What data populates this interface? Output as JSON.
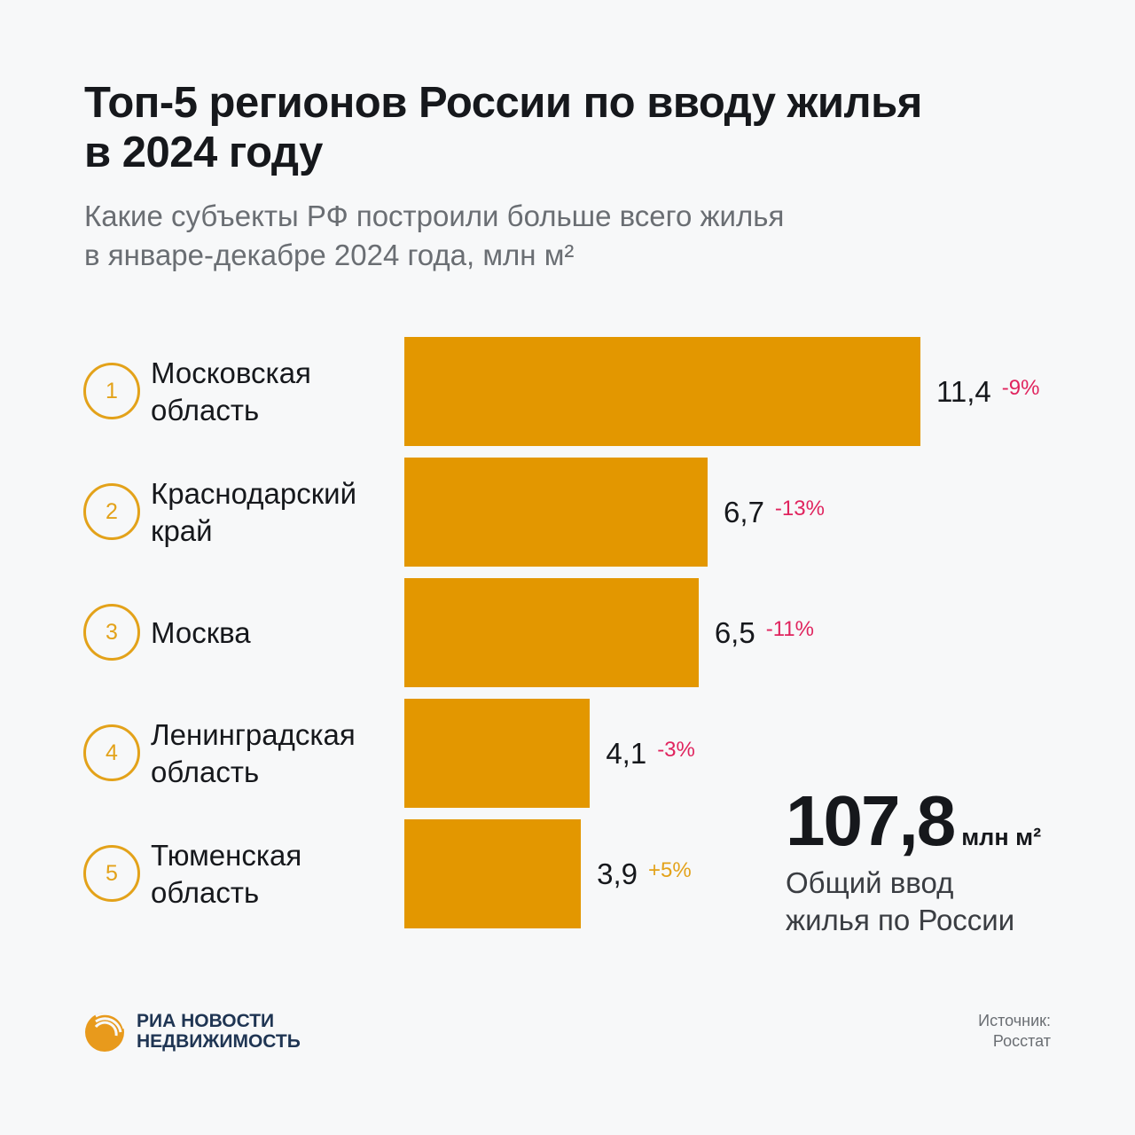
{
  "chart_data": {
    "type": "bar",
    "orientation": "horizontal",
    "title": "Топ-5 регионов России по вводу жилья в 2024 году",
    "subtitle": "Какие субъекты РФ построили больше всего жилья в январе-декабре 2024 года, млн м²",
    "categories": [
      "Московская область",
      "Краснодарский край",
      "Москва",
      "Ленинградская область",
      "Тюменская область"
    ],
    "ranks": [
      "1",
      "2",
      "3",
      "4",
      "5"
    ],
    "values": [
      11.4,
      6.7,
      6.5,
      4.1,
      3.9
    ],
    "value_labels": [
      "11,4",
      "6,7",
      "6,5",
      "4,1",
      "3,9"
    ],
    "changes": [
      "-9%",
      "-13%",
      "-11%",
      "-3%",
      "+5%"
    ],
    "bar_color": "#e39700",
    "negative_color": "#e0245e",
    "positive_color": "#e3a21a",
    "xlim": [
      0,
      11.4
    ],
    "grid": false
  },
  "total": {
    "value": "107,8",
    "unit": "млн м²",
    "label_line1": "Общий ввод",
    "label_line2": "жилья по России"
  },
  "title_line1": "Топ-5 регионов России по вводу жилья",
  "title_line2": "в 2024 году",
  "subtitle_line1": "Какие субъекты РФ построили больше всего жилья",
  "subtitle_line2": "в январе-декабре 2024 года, млн м²",
  "logo": {
    "line1": "РИА НОВОСТИ",
    "line2": "НЕДВИЖИМОСТЬ"
  },
  "source": {
    "label": "Источник:",
    "value": "Росстат"
  }
}
